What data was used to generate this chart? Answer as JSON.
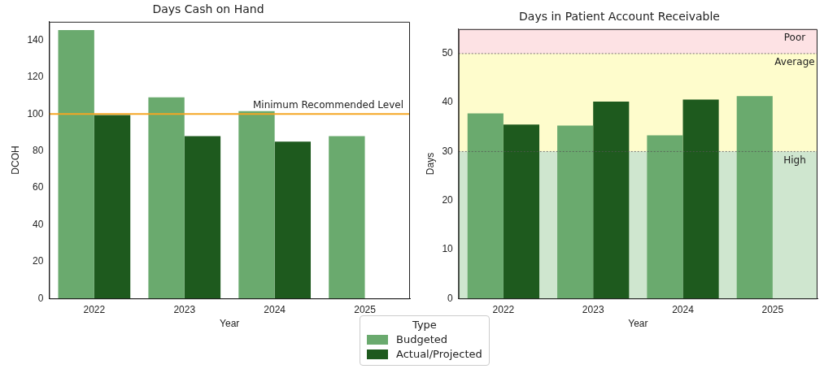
{
  "chart_data": [
    {
      "type": "bar",
      "title": "Days Cash on Hand",
      "xlabel": "Year",
      "ylabel": "DCOH",
      "categories": [
        "2022",
        "2023",
        "2024",
        "2025"
      ],
      "series": [
        {
          "name": "Budgeted",
          "color": "#6aaa6e",
          "values": [
            145.5,
            109,
            101.5,
            88
          ]
        },
        {
          "name": "Actual/Projected",
          "color": "#1e5a1e",
          "values": [
            99.5,
            88,
            85,
            null
          ]
        }
      ],
      "ylim": [
        0,
        150
      ],
      "yticks": [
        0,
        20,
        40,
        60,
        80,
        100,
        120,
        140
      ],
      "ref_lines": [
        {
          "axis": "y",
          "value": 100,
          "label": "Minimum Recommended Level",
          "color": "#f5a623",
          "line_style": "solid"
        }
      ],
      "legend": "bottom",
      "legend_title": "Type"
    },
    {
      "type": "bar",
      "title": "Days in Patient Account Receivable",
      "xlabel": "Year",
      "ylabel": "Days",
      "categories": [
        "2022",
        "2023",
        "2024",
        "2025"
      ],
      "series": [
        {
          "color": "#6aaa6e",
          "values": [
            37.8,
            35.3,
            33.3,
            41.3
          ]
        },
        {
          "color": "#1e5a1e",
          "values": [
            35.5,
            40.2,
            40.6,
            null
          ]
        }
      ],
      "ylim": [
        0,
        55
      ],
      "yticks": [
        0,
        10,
        20,
        30,
        40,
        50
      ],
      "bands": [
        {
          "axis": "y",
          "from": 50,
          "to": 55,
          "label": "Poor",
          "color": "#fde2e4"
        },
        {
          "axis": "y",
          "from": 30,
          "to": 50,
          "label": "Average",
          "color": "#fefccc"
        },
        {
          "axis": "y",
          "from": 0,
          "to": 30,
          "label": "High",
          "color": "#cfe6cf"
        }
      ],
      "ref_lines": [
        {
          "axis": "y",
          "value": 30,
          "color": "#555555",
          "line_style": "dotted"
        },
        {
          "axis": "y",
          "value": 50,
          "color": "#555555",
          "line_style": "dotted"
        }
      ],
      "legend": false
    }
  ]
}
